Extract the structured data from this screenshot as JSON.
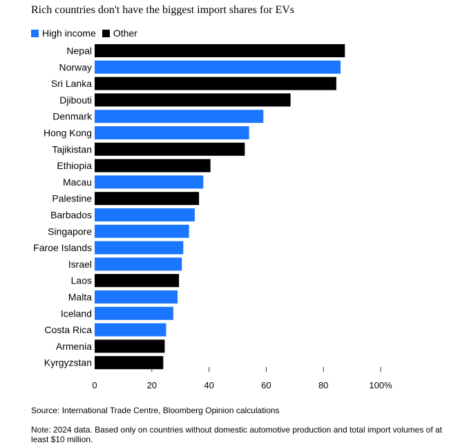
{
  "colors": {
    "High income": "#1a75ff",
    "Other": "#000000"
  },
  "chart_data": {
    "type": "bar",
    "orientation": "horizontal",
    "title": "Rich countries don't have the biggest import shares for EVs",
    "legend": [
      "High income",
      "Other"
    ],
    "legend_position": "top-left",
    "xlim": [
      0,
      100
    ],
    "x_ticks": [
      "0",
      "20",
      "40",
      "60",
      "80",
      "100%"
    ],
    "grid": false,
    "categories": [
      "Nepal",
      "Norway",
      "Sri Lanka",
      "Djibouti",
      "Denmark",
      "Hong Kong",
      "Tajikistan",
      "Ethiopia",
      "Macau",
      "Palestine",
      "Barbados",
      "Singapore",
      "Faroe Islands",
      "Israel",
      "Laos",
      "Malta",
      "Iceland",
      "Costa Rica",
      "Armenia",
      "Kyrgyzstan"
    ],
    "values": [
      87.5,
      86,
      84.5,
      68.5,
      59,
      54,
      52.5,
      40.5,
      38,
      36.5,
      35,
      33,
      31,
      30.5,
      29.5,
      29,
      27.5,
      25,
      24.5,
      24
    ],
    "groups": [
      "Other",
      "High income",
      "Other",
      "Other",
      "High income",
      "High income",
      "Other",
      "Other",
      "High income",
      "Other",
      "High income",
      "High income",
      "High income",
      "High income",
      "Other",
      "High income",
      "High income",
      "High income",
      "Other",
      "Other"
    ]
  },
  "footer": {
    "source": "Source: International Trade Centre, Bloomberg Opinion calculations",
    "note": "Note: 2024 data. Based only on countries without domestic automotive production and total import volumes of at least $10 million."
  }
}
